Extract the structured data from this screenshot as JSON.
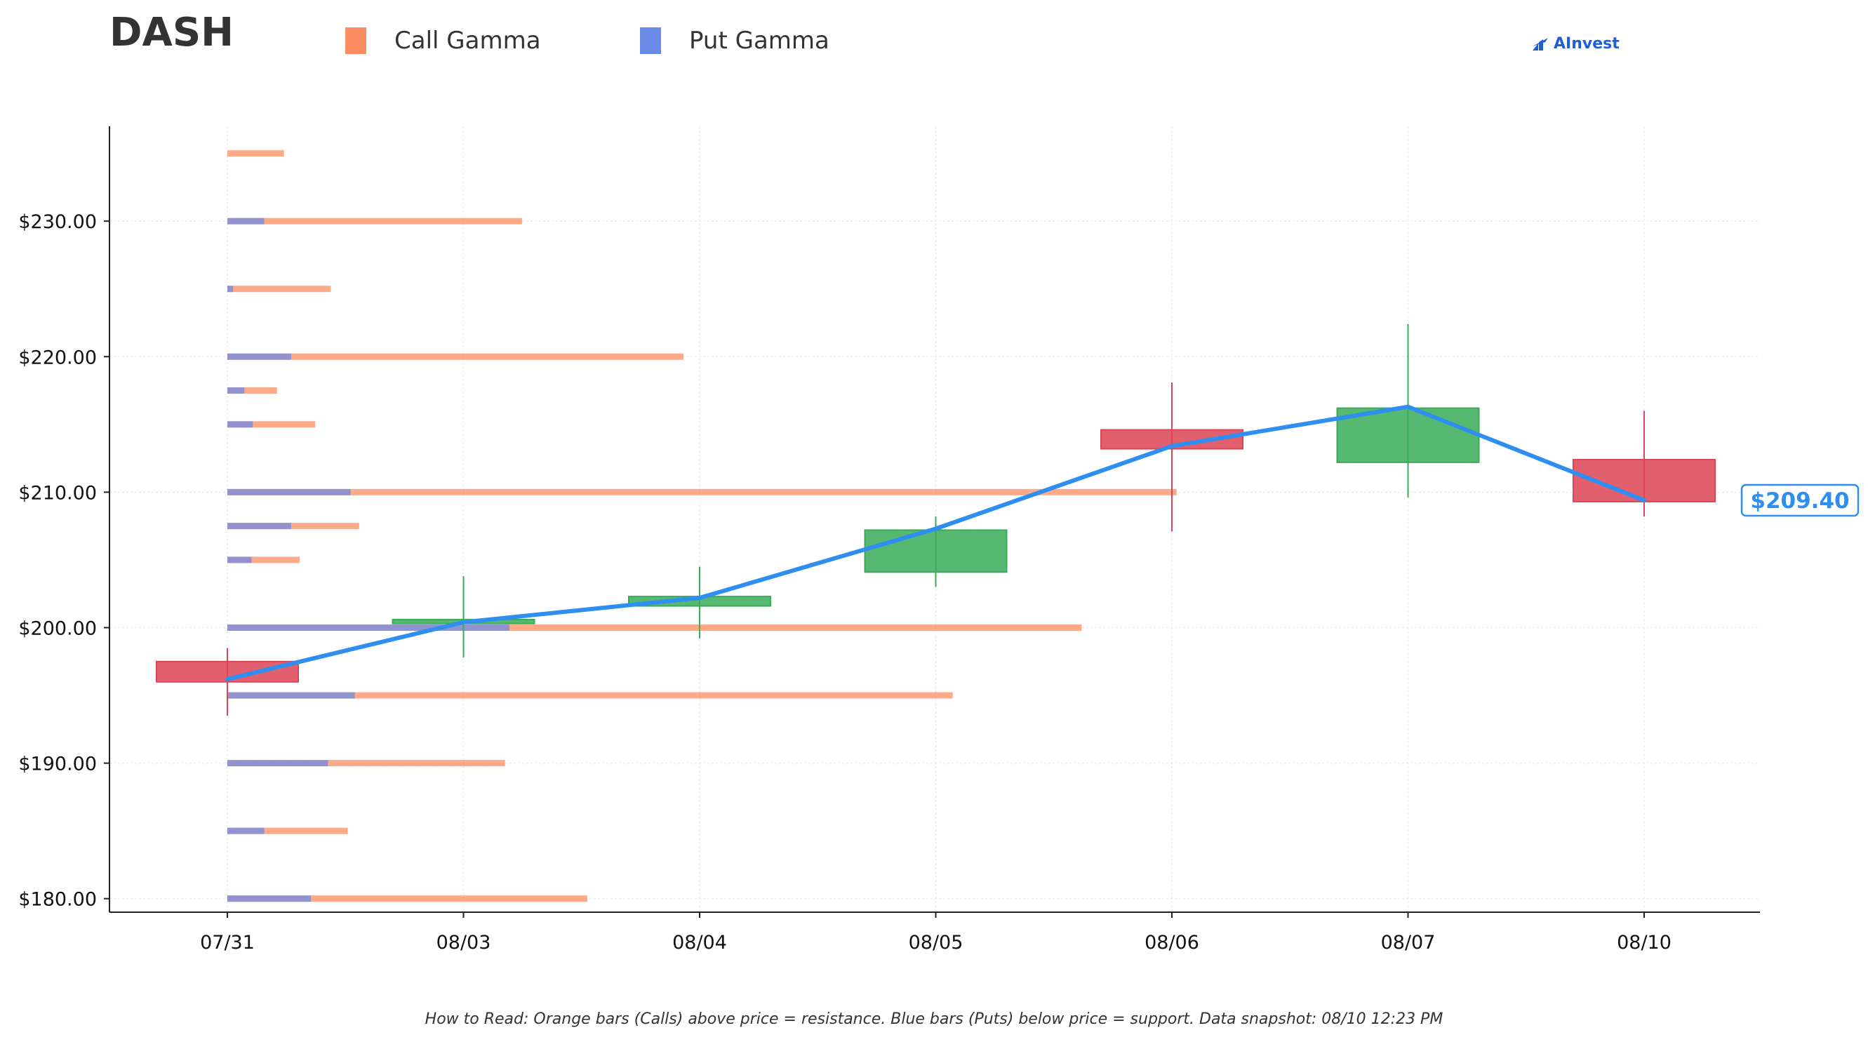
{
  "header": {
    "ticker": "DASH",
    "logo_text": "AInvest"
  },
  "legend": [
    {
      "label": "Call Gamma",
      "color": "#fc8d62"
    },
    {
      "label": "Put Gamma",
      "color": "#6b8be6"
    }
  ],
  "footnote": "How to Read: Orange bars (Calls) above price = resistance. Blue bars (Puts) below price = support. Data snapshot: 08/10 12:23 PM",
  "chart_data": {
    "type": "candlestick",
    "title": "DASH",
    "xlabel": "",
    "ylabel": "",
    "ylim": [
      179,
      237
    ],
    "y_ticks": [
      180,
      190,
      200,
      210,
      220,
      230
    ],
    "y_tick_labels": [
      "$180.00",
      "$190.00",
      "$200.00",
      "$210.00",
      "$220.00",
      "$230.00"
    ],
    "categories": [
      "07/31",
      "08/03",
      "08/04",
      "08/05",
      "08/06",
      "08/07",
      "08/10"
    ],
    "grid": true,
    "candles": [
      {
        "date": "07/31",
        "open": 197.5,
        "high": 198.5,
        "low": 193.5,
        "close": 196.0
      },
      {
        "date": "08/03",
        "open": 200.3,
        "high": 203.8,
        "low": 197.8,
        "close": 200.6
      },
      {
        "date": "08/04",
        "open": 201.6,
        "high": 204.5,
        "low": 199.2,
        "close": 202.3
      },
      {
        "date": "08/05",
        "open": 204.1,
        "high": 208.2,
        "low": 203.0,
        "close": 207.2
      },
      {
        "date": "08/06",
        "open": 214.6,
        "high": 218.1,
        "low": 207.1,
        "close": 213.2
      },
      {
        "date": "08/07",
        "open": 212.2,
        "high": 222.4,
        "low": 209.6,
        "close": 216.2
      },
      {
        "date": "08/10",
        "open": 212.4,
        "high": 216.0,
        "low": 208.2,
        "close": 209.3
      }
    ],
    "up_color": "#3aab58",
    "down_color": "#dd4455",
    "price_line": {
      "color": "#2e8ff0",
      "values": [
        196.2,
        200.4,
        202.2,
        207.3,
        213.4,
        216.3,
        209.4
      ]
    },
    "last_price_label": "$209.40",
    "gamma_bars": {
      "x_unit": "fraction of 07/31-to-08/10 span",
      "levels": [
        {
          "strike": 180,
          "put": 0.059,
          "call": 0.195
        },
        {
          "strike": 185,
          "put": 0.026,
          "call": 0.059
        },
        {
          "strike": 190,
          "put": 0.071,
          "call": 0.125
        },
        {
          "strike": 195,
          "put": 0.09,
          "call": 0.422
        },
        {
          "strike": 200,
          "put": 0.199,
          "call": 0.404
        },
        {
          "strike": 205,
          "put": 0.017,
          "call": 0.034
        },
        {
          "strike": 207.5,
          "put": 0.045,
          "call": 0.048
        },
        {
          "strike": 210,
          "put": 0.087,
          "call": 0.583
        },
        {
          "strike": 215,
          "put": 0.018,
          "call": 0.044
        },
        {
          "strike": 217.5,
          "put": 0.012,
          "call": 0.023
        },
        {
          "strike": 220,
          "put": 0.045,
          "call": 0.277
        },
        {
          "strike": 225,
          "put": 0.004,
          "call": 0.069
        },
        {
          "strike": 230,
          "put": 0.026,
          "call": 0.182
        },
        {
          "strike": 235,
          "put": 0.0,
          "call": 0.04
        }
      ]
    }
  }
}
